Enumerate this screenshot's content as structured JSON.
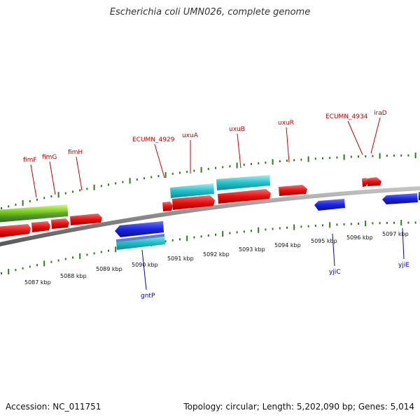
{
  "title": "Escherichia coli UMN026, complete genome",
  "footer": {
    "accession": "Accession: NC_011751",
    "topology": "Topology: circular; Length: 5,202,090 bp; Genes: 5,014"
  },
  "colors": {
    "backbone": "#8a8a8a",
    "tick": "#2e7d1e",
    "forward_gene": "#ee1111",
    "reverse_gene": "#1a24e0",
    "cyan_feature": "#22c2cc",
    "green_feature": "#7ccf22",
    "forward_label": "#cc0000",
    "reverse_label": "#0000cc"
  },
  "kbp_labels": [
    "5087 kbp",
    "5088 kbp",
    "5089 kbp",
    "5090 kbp",
    "5091 kbp",
    "5092 kbp",
    "5093 kbp",
    "5094 kbp",
    "5095 kbp",
    "5096 kbp",
    "5097 kbp"
  ],
  "forward_genes": [
    "fimF",
    "fimG",
    "fimH",
    "ECUMN_4929",
    "uxuA",
    "uxuB",
    "uxuR",
    "ECUMN_4934",
    "iraD"
  ],
  "reverse_genes": [
    "gntP",
    "yjiC",
    "yjiE"
  ]
}
